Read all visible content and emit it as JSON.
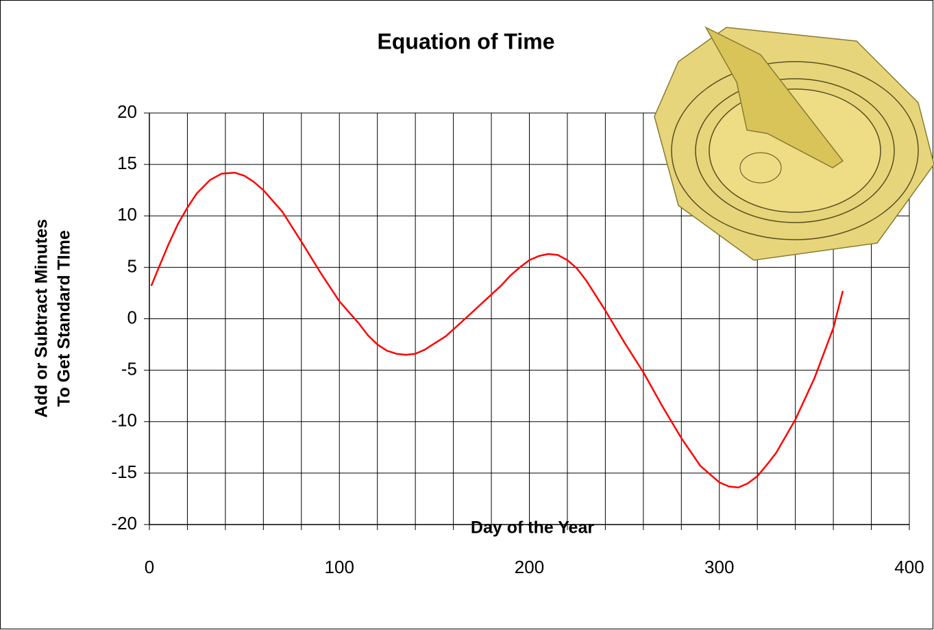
{
  "chart_data": {
    "type": "line",
    "title": "Equation of Time",
    "xlabel": "Day of the Year",
    "ylabel": [
      "Add or Subtract Minutes",
      "To Get Standard TIme"
    ],
    "x": [
      1,
      5,
      10,
      15,
      20,
      25,
      32,
      38,
      45,
      50,
      55,
      60,
      70,
      80,
      90,
      100,
      110,
      115,
      120,
      125,
      130,
      135,
      140,
      145,
      150,
      156,
      165,
      175,
      185,
      190,
      195,
      200,
      205,
      210,
      215,
      220,
      225,
      230,
      240,
      250,
      260,
      270,
      280,
      290,
      300,
      305,
      310,
      315,
      320,
      325,
      330,
      340,
      350,
      360,
      365
    ],
    "values": [
      3.2,
      5,
      7.2,
      9.2,
      10.8,
      12.2,
      13.5,
      14.1,
      14.2,
      13.9,
      13.3,
      12.5,
      10.4,
      7.5,
      4.5,
      1.7,
      -0.4,
      -1.6,
      -2.5,
      -3.1,
      -3.4,
      -3.5,
      -3.4,
      -3.0,
      -2.4,
      -1.7,
      -0.2,
      1.5,
      3.2,
      4.2,
      5.0,
      5.7,
      6.1,
      6.3,
      6.2,
      5.7,
      4.9,
      3.7,
      0.8,
      -2.3,
      -5.2,
      -8.5,
      -11.6,
      -14.3,
      -15.9,
      -16.3,
      -16.4,
      -16,
      -15.3,
      -14.2,
      -13,
      -9.8,
      -5.8,
      -0.9,
      2.7
    ],
    "color": "#ff0000",
    "xlim": [
      0,
      400
    ],
    "xticks": [
      0,
      100,
      200,
      300,
      400
    ],
    "xgrid": [
      0,
      20,
      40,
      60,
      80,
      100,
      120,
      140,
      160,
      180,
      200,
      220,
      240,
      260,
      280,
      300,
      320,
      340,
      360,
      380,
      400
    ],
    "ylim": [
      -20,
      20
    ],
    "yticks": [
      -20,
      -15,
      -10,
      -5,
      0,
      5,
      10,
      15,
      20
    ],
    "grid": true
  }
}
